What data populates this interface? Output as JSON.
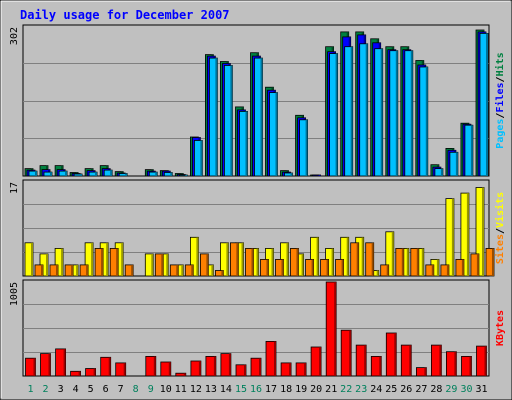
{
  "chart_data": [
    {
      "type": "bar",
      "title": "Daily usage for December 2007",
      "ymax_label": "302",
      "ylabel_parts": [
        {
          "text": "Pages",
          "color": "#00c0ff"
        },
        {
          "text": "/",
          "color": "#000000"
        },
        {
          "text": "Files",
          "color": "#0000ff"
        },
        {
          "text": "/",
          "color": "#000000"
        },
        {
          "text": "Hits",
          "color": "#008040"
        }
      ],
      "ylim": [
        0,
        302
      ],
      "categories": [
        "1",
        "2",
        "3",
        "4",
        "5",
        "6",
        "7",
        "8",
        "9",
        "10",
        "11",
        "12",
        "13",
        "14",
        "15",
        "16",
        "17",
        "18",
        "19",
        "20",
        "21",
        "22",
        "23",
        "24",
        "25",
        "26",
        "27",
        "28",
        "29",
        "30",
        "31"
      ],
      "series": [
        {
          "name": "Hits",
          "color": "#008040",
          "values": [
            15,
            21,
            21,
            7,
            15,
            21,
            9,
            0,
            13,
            11,
            5,
            79,
            246,
            232,
            140,
            250,
            180,
            11,
            123,
            1,
            262,
            292,
            292,
            278,
            262,
            262,
            234,
            23,
            56,
            107,
            296
          ]
        },
        {
          "name": "Files",
          "color": "#0000ff",
          "values": [
            12,
            13,
            13,
            5,
            11,
            15,
            6,
            0,
            10,
            10,
            3,
            78,
            243,
            228,
            134,
            243,
            174,
            8,
            118,
            1,
            252,
            282,
            286,
            270,
            256,
            256,
            225,
            18,
            52,
            105,
            292
          ]
        },
        {
          "name": "Pages",
          "color": "#00c0ff",
          "values": [
            10,
            8,
            10,
            4,
            8,
            12,
            5,
            0,
            8,
            7,
            2,
            72,
            239,
            224,
            131,
            239,
            169,
            6,
            114,
            0,
            248,
            262,
            268,
            258,
            254,
            254,
            221,
            15,
            48,
            103,
            289
          ]
        }
      ]
    },
    {
      "type": "bar",
      "ymax_label": "17",
      "ylabel_parts": [
        {
          "text": "Sites",
          "color": "#ff8000"
        },
        {
          "text": "/",
          "color": "#000000"
        },
        {
          "text": "Visits",
          "color": "#ffff00"
        }
      ],
      "ylim": [
        0,
        17
      ],
      "categories": [
        "1",
        "2",
        "3",
        "4",
        "5",
        "6",
        "7",
        "8",
        "9",
        "10",
        "11",
        "12",
        "13",
        "14",
        "15",
        "16",
        "17",
        "18",
        "19",
        "20",
        "21",
        "22",
        "23",
        "24",
        "25",
        "26",
        "27",
        "28",
        "29",
        "30",
        "31"
      ],
      "series": [
        {
          "name": "Visits",
          "color": "#ffff00",
          "values": [
            6,
            4,
            5,
            2,
            6,
            6,
            6,
            0,
            4,
            4,
            2,
            7,
            2,
            6,
            6,
            5,
            5,
            6,
            4,
            7,
            5,
            7,
            7,
            1,
            8,
            5,
            5,
            3,
            14,
            15,
            16
          ]
        },
        {
          "name": "Sites",
          "color": "#ff8000",
          "values": [
            2,
            2,
            2,
            2,
            5,
            5,
            2,
            0,
            4,
            2,
            2,
            4,
            1,
            6,
            5,
            3,
            3,
            5,
            3,
            3,
            3,
            6,
            6,
            2,
            5,
            5,
            2,
            2,
            3,
            4,
            5
          ]
        }
      ]
    },
    {
      "type": "bar",
      "ymax_label": "1005",
      "ylabel_parts": [
        {
          "text": "KBytes",
          "color": "#ff0000"
        }
      ],
      "ylim": [
        0,
        1005
      ],
      "categories": [
        "1",
        "2",
        "3",
        "4",
        "5",
        "6",
        "7",
        "8",
        "9",
        "10",
        "11",
        "12",
        "13",
        "14",
        "15",
        "16",
        "17",
        "18",
        "19",
        "20",
        "21",
        "22",
        "23",
        "24",
        "25",
        "26",
        "27",
        "28",
        "29",
        "30",
        "31"
      ],
      "weekend_days": [
        "1",
        "2",
        "8",
        "9",
        "15",
        "16",
        "22",
        "23",
        "29",
        "30"
      ],
      "weekday_label_color": "#000000",
      "weekend_label_color": "#00805c",
      "series": [
        {
          "name": "KBytes",
          "color": "#ff0000",
          "values": [
            190,
            240,
            290,
            50,
            80,
            200,
            140,
            0,
            210,
            150,
            30,
            160,
            210,
            240,
            120,
            190,
            370,
            140,
            140,
            310,
            1005,
            490,
            330,
            210,
            460,
            330,
            90,
            330,
            260,
            210,
            320
          ]
        }
      ]
    }
  ]
}
